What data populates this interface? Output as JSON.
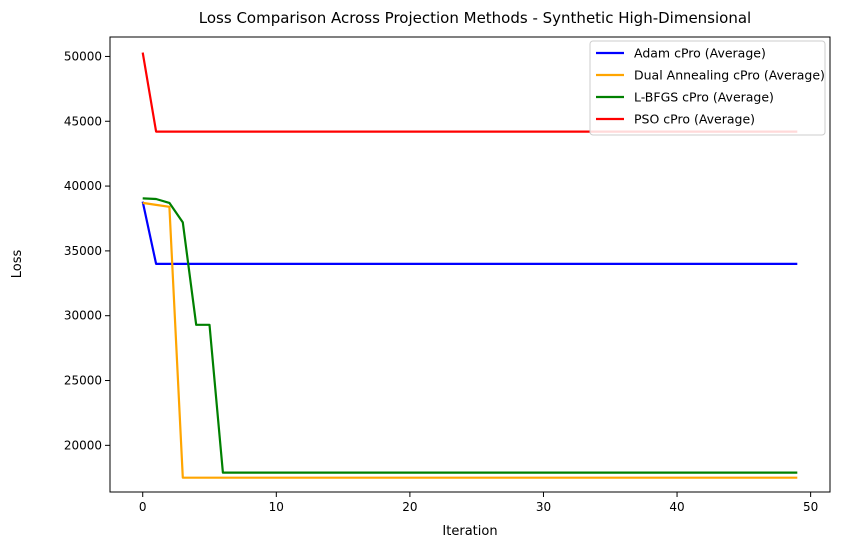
{
  "chart_data": {
    "type": "line",
    "title": "Loss Comparison Across Projection Methods - Synthetic High-Dimensional",
    "xlabel": "Iteration",
    "ylabel": "Loss",
    "xlim": [
      -2.45,
      51.45
    ],
    "ylim": [
      16400,
      51500
    ],
    "xticks": [
      0,
      10,
      20,
      30,
      40,
      50
    ],
    "yticks": [
      20000,
      25000,
      30000,
      35000,
      40000,
      45000,
      50000
    ],
    "grid": false,
    "legend_position": "top-right",
    "series": [
      {
        "name": "Adam cPro (Average)",
        "color": "#0000ff",
        "x": [
          0,
          1,
          49
        ],
        "y": [
          38800,
          34000,
          34000
        ]
      },
      {
        "name": "Dual Annealing cPro (Average)",
        "color": "#ffa500",
        "x": [
          0,
          1,
          2,
          3,
          49
        ],
        "y": [
          38700,
          38550,
          38400,
          17500,
          17500
        ]
      },
      {
        "name": "L-BFGS cPro (Average)",
        "color": "#008000",
        "x": [
          0,
          1,
          2,
          3,
          4,
          5,
          6,
          49
        ],
        "y": [
          39050,
          39000,
          38700,
          37200,
          29300,
          29300,
          17900,
          17900
        ]
      },
      {
        "name": "PSO cPro (Average)",
        "color": "#ff0000",
        "x": [
          0,
          1,
          49
        ],
        "y": [
          50300,
          44200,
          44200
        ]
      }
    ]
  }
}
